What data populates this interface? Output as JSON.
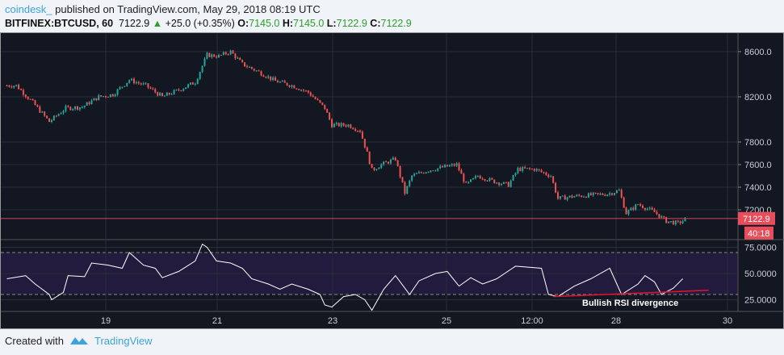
{
  "header": {
    "user": "coindesk_",
    "published": "published on TradingView.com, May 29, 2018 08:19 UTC",
    "symbol": "BITFINEX:BTCUSD, 60",
    "last": "7122.9",
    "change": "+25.0 (+0.35%)",
    "o_label": "O:",
    "o": "7145.0",
    "h_label": "H:",
    "h": "7145.0",
    "l_label": "L:",
    "l": "7122.9",
    "c_label": "C:",
    "c": "7122.9"
  },
  "price_axis": {
    "ticks": [
      "8600.0",
      "8200.0",
      "7800.0",
      "7600.0",
      "7400.0",
      "7200.0"
    ],
    "current_price": "7122.9",
    "countdown": "40:18"
  },
  "rsi_axis": {
    "ticks": [
      "75.0000",
      "50.0000",
      "25.0000"
    ],
    "upper_band": 70,
    "lower_band": 30
  },
  "time_axis": {
    "ticks": [
      "19",
      "21",
      "23",
      "25",
      "12:00",
      "28",
      "30"
    ]
  },
  "annotation": {
    "text": "Bullish RSI divergence",
    "line_start": [
      "2018-05-26 22:00",
      28
    ],
    "line_end": [
      "2018-05-29 16:00",
      34
    ],
    "color": "#e8112d"
  },
  "colors": {
    "background": "#131722",
    "up": "#26a69a",
    "down": "#ef5350",
    "rsi": "#ffffff",
    "band": "#231b3d",
    "price_line": "#e84d5b"
  },
  "chart_data": {
    "type": "candlestick",
    "interval": "60",
    "price": [
      [
        "2018-05-17 06:00",
        8300
      ],
      [
        "2018-05-17 10:00",
        8300
      ],
      [
        "2018-05-17 17:00",
        8150
      ],
      [
        "2018-05-18 00:00",
        7980
      ],
      [
        "2018-05-18 07:00",
        8100
      ],
      [
        "2018-05-18 14:00",
        8110
      ],
      [
        "2018-05-18 21:00",
        8200
      ],
      [
        "2018-05-19 03:00",
        8220
      ],
      [
        "2018-05-19 10:00",
        8350
      ],
      [
        "2018-05-19 17:00",
        8300
      ],
      [
        "2018-05-20 00:00",
        8200
      ],
      [
        "2018-05-20 07:00",
        8260
      ],
      [
        "2018-05-20 14:00",
        8330
      ],
      [
        "2018-05-20 19:00",
        8570
      ],
      [
        "2018-05-21 00:00",
        8560
      ],
      [
        "2018-05-21 05:00",
        8600
      ],
      [
        "2018-05-21 10:00",
        8490
      ],
      [
        "2018-05-21 17:00",
        8420
      ],
      [
        "2018-05-22 00:00",
        8340
      ],
      [
        "2018-05-22 07:00",
        8300
      ],
      [
        "2018-05-22 14:00",
        8240
      ],
      [
        "2018-05-22 21:00",
        8100
      ],
      [
        "2018-05-23 00:00",
        7950
      ],
      [
        "2018-05-23 07:00",
        7950
      ],
      [
        "2018-05-23 12:00",
        7900
      ],
      [
        "2018-05-23 15:00",
        7700
      ],
      [
        "2018-05-23 17:00",
        7550
      ],
      [
        "2018-05-23 21:00",
        7600
      ],
      [
        "2018-05-24 03:00",
        7650
      ],
      [
        "2018-05-24 07:00",
        7350
      ],
      [
        "2018-05-24 10:00",
        7500
      ],
      [
        "2018-05-24 17:00",
        7550
      ],
      [
        "2018-05-25 00:00",
        7580
      ],
      [
        "2018-05-25 05:00",
        7600
      ],
      [
        "2018-05-25 09:00",
        7420
      ],
      [
        "2018-05-25 14:00",
        7500
      ],
      [
        "2018-05-25 21:00",
        7450
      ],
      [
        "2018-05-26 03:00",
        7420
      ],
      [
        "2018-05-26 07:00",
        7560
      ],
      [
        "2018-05-26 14:00",
        7560
      ],
      [
        "2018-05-26 21:00",
        7500
      ],
      [
        "2018-05-27 00:00",
        7300
      ],
      [
        "2018-05-27 07:00",
        7320
      ],
      [
        "2018-05-27 14:00",
        7330
      ],
      [
        "2018-05-27 21:00",
        7340
      ],
      [
        "2018-05-28 02:00",
        7370
      ],
      [
        "2018-05-28 05:00",
        7170
      ],
      [
        "2018-05-28 10:00",
        7250
      ],
      [
        "2018-05-28 17:00",
        7180
      ],
      [
        "2018-05-28 22:00",
        7100
      ],
      [
        "2018-05-29 03:00",
        7080
      ],
      [
        "2018-05-29 07:00",
        7122.9
      ]
    ],
    "rsi": [
      [
        "2018-05-17 06:00",
        45
      ],
      [
        "2018-05-17 14:00",
        48
      ],
      [
        "2018-05-17 18:00",
        40
      ],
      [
        "2018-05-18 00:00",
        30
      ],
      [
        "2018-05-18 01:00",
        25
      ],
      [
        "2018-05-18 06:00",
        32
      ],
      [
        "2018-05-18 08:00",
        48
      ],
      [
        "2018-05-18 15:00",
        47
      ],
      [
        "2018-05-18 18:00",
        60
      ],
      [
        "2018-05-19 01:00",
        58
      ],
      [
        "2018-05-19 07:00",
        55
      ],
      [
        "2018-05-19 10:00",
        70
      ],
      [
        "2018-05-19 16:00",
        58
      ],
      [
        "2018-05-19 21:00",
        55
      ],
      [
        "2018-05-20 00:00",
        46
      ],
      [
        "2018-05-20 07:00",
        52
      ],
      [
        "2018-05-20 14:00",
        62
      ],
      [
        "2018-05-20 17:00",
        78
      ],
      [
        "2018-05-20 19:00",
        75
      ],
      [
        "2018-05-20 23:00",
        62
      ],
      [
        "2018-05-21 05:00",
        60
      ],
      [
        "2018-05-21 10:00",
        55
      ],
      [
        "2018-05-21 14:00",
        45
      ],
      [
        "2018-05-21 21:00",
        40
      ],
      [
        "2018-05-22 02:00",
        35
      ],
      [
        "2018-05-22 07:00",
        40
      ],
      [
        "2018-05-22 14:00",
        35
      ],
      [
        "2018-05-22 19:00",
        30
      ],
      [
        "2018-05-22 21:00",
        20
      ],
      [
        "2018-05-23 00:00",
        18
      ],
      [
        "2018-05-23 05:00",
        28
      ],
      [
        "2018-05-23 10:00",
        30
      ],
      [
        "2018-05-23 14:00",
        25
      ],
      [
        "2018-05-23 17:00",
        15
      ],
      [
        "2018-05-23 22:00",
        35
      ],
      [
        "2018-05-24 03:00",
        48
      ],
      [
        "2018-05-24 09:00",
        30
      ],
      [
        "2018-05-24 13:00",
        43
      ],
      [
        "2018-05-24 20:00",
        50
      ],
      [
        "2018-05-25 01:00",
        52
      ],
      [
        "2018-05-25 06:00",
        38
      ],
      [
        "2018-05-25 11:00",
        46
      ],
      [
        "2018-05-25 16:00",
        40
      ],
      [
        "2018-05-25 22:00",
        45
      ],
      [
        "2018-05-26 06:00",
        57
      ],
      [
        "2018-05-26 17:00",
        55
      ],
      [
        "2018-05-26 20:00",
        30
      ],
      [
        "2018-05-27 00:00",
        28
      ],
      [
        "2018-05-27 07:00",
        38
      ],
      [
        "2018-05-27 14:00",
        45
      ],
      [
        "2018-05-27 22:00",
        55
      ],
      [
        "2018-05-28 03:00",
        30
      ],
      [
        "2018-05-28 10:00",
        40
      ],
      [
        "2018-05-28 13:00",
        48
      ],
      [
        "2018-05-28 17:00",
        42
      ],
      [
        "2018-05-28 20:00",
        30
      ],
      [
        "2018-05-29 01:00",
        36
      ],
      [
        "2018-05-29 05:00",
        45
      ]
    ],
    "rsi_ylim": [
      10,
      85
    ]
  },
  "footer": {
    "created_with": "Created with",
    "brand": "TradingView"
  }
}
